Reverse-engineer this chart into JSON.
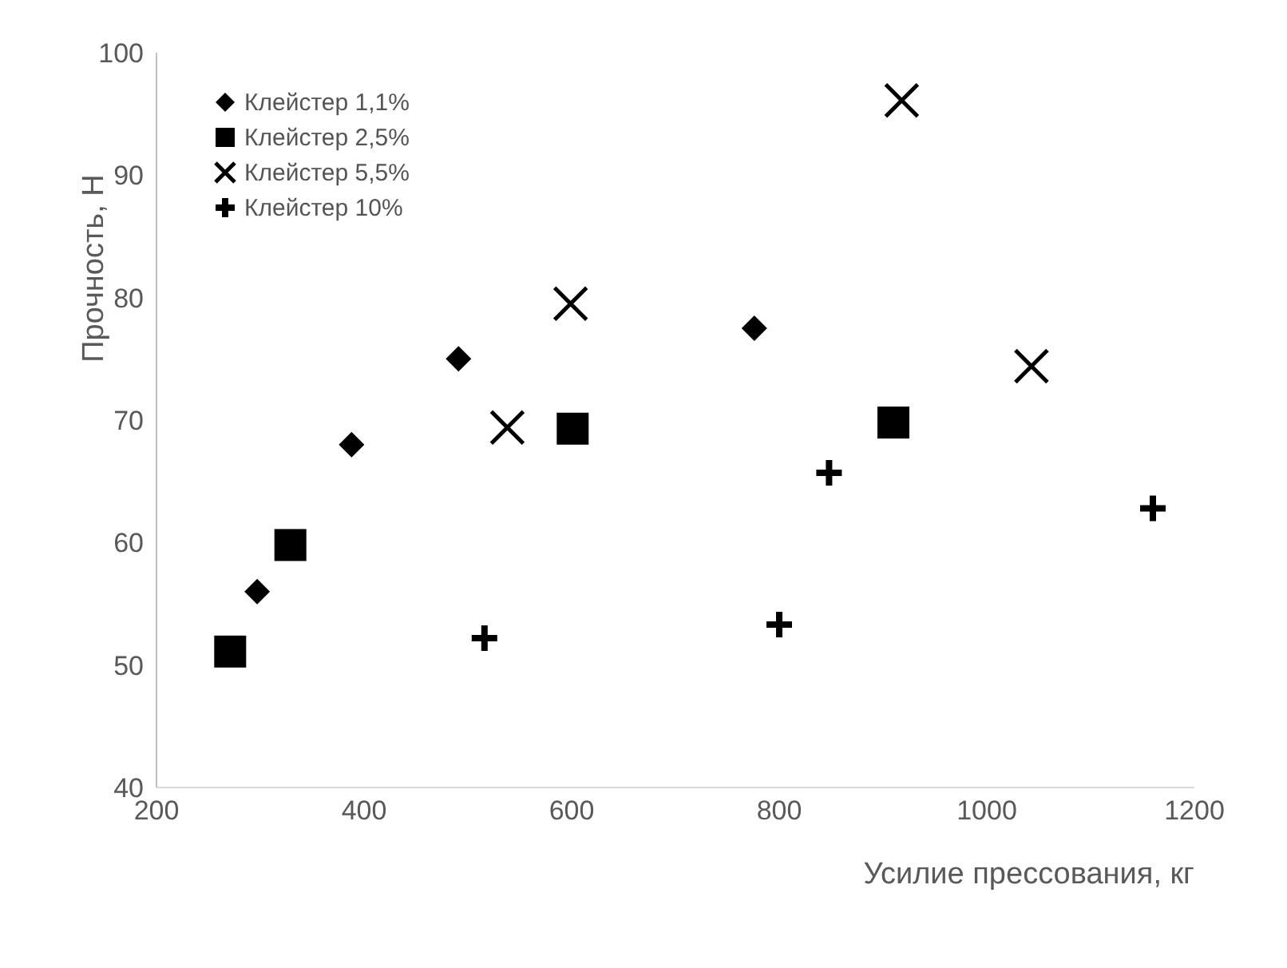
{
  "chart_data": {
    "type": "scatter",
    "xlabel": "Усилие прессования, кг",
    "ylabel": "Прочность, Н",
    "xlim": [
      200,
      1200
    ],
    "xticks": [
      200,
      400,
      600,
      800,
      1000,
      1200
    ],
    "ylim": [
      40,
      100
    ],
    "yticks": [
      40,
      50,
      60,
      70,
      80,
      90,
      100
    ],
    "grid": false,
    "legend": "top left",
    "series": [
      {
        "name": "Клейстер 1,1%",
        "color": "#000000",
        "marker": "diamond",
        "x": [
          297,
          388,
          491,
          776
        ],
        "values": [
          56,
          68,
          75,
          77.5
        ]
      },
      {
        "name": "Клейстер 2,5%",
        "color": "#000000",
        "marker": "square",
        "x": [
          271,
          329,
          601,
          910
        ],
        "values": [
          51.1,
          59.8,
          69.3,
          69.8
        ]
      },
      {
        "name": "Клейстер 5,5%",
        "color": "#000000",
        "marker": "cross",
        "x": [
          538,
          599,
          918,
          1043
        ],
        "values": [
          69.4,
          79.5,
          96.1,
          74.4
        ]
      },
      {
        "name": "Клейстер 10%",
        "color": "#000000",
        "marker": "plus",
        "x": [
          516,
          800,
          848,
          1160
        ],
        "values": [
          52.2,
          53.3,
          65.7,
          62.8
        ]
      }
    ]
  }
}
